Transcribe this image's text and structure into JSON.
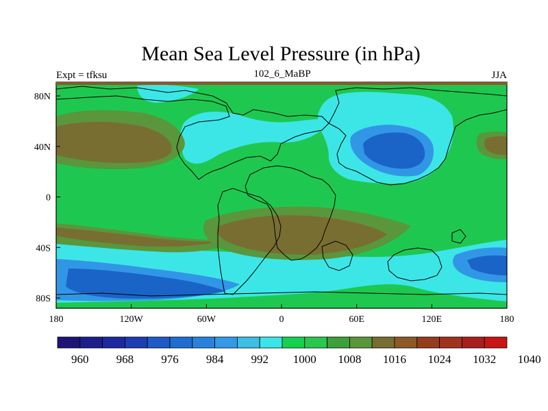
{
  "title": "Mean Sea Level Pressure (in hPa)",
  "left_label": "Expt = tfksu",
  "center_label": "102_6_MaBP",
  "right_label": "JJA",
  "colors": {
    "ocean_low_dark": "#1a64c8",
    "ocean_low": "#3296e6",
    "cyan": "#3ce6e6",
    "green": "#1ec850",
    "olive_green": "#5a963c",
    "olive_brown": "#786e32",
    "brown": "#8c5a28"
  },
  "map": {
    "x_ticks": [
      "180",
      "120W",
      "60W",
      "0",
      "60E",
      "120E",
      "180"
    ],
    "y_ticks": [
      "80N",
      "40N",
      "0",
      "40S",
      "80S"
    ]
  },
  "colorbar": {
    "colors": [
      "#1e1478",
      "#1e1e8c",
      "#1e28a0",
      "#1e3cb4",
      "#1e5ac8",
      "#1e6ed2",
      "#2882dc",
      "#329ae6",
      "#3cbee6",
      "#3ce6e6",
      "#14d250",
      "#28c850",
      "#3ca03c",
      "#5a963c",
      "#786e32",
      "#8c5a28",
      "#963c1e",
      "#a0321e",
      "#aa1e1e",
      "#c81414"
    ],
    "labels": [
      "960",
      "968",
      "976",
      "984",
      "992",
      "1000",
      "1008",
      "1016",
      "1024",
      "1032",
      "1040"
    ]
  }
}
